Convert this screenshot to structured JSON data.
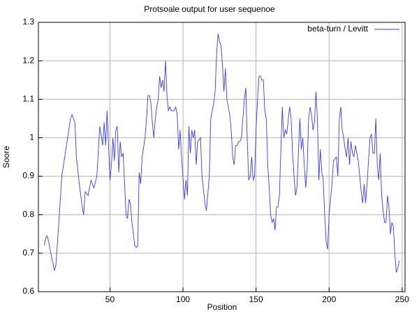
{
  "chart_data": {
    "type": "line",
    "title": "Protsoale output for user sequenoe",
    "x_label": "Position",
    "y_label": "Soore",
    "xlim": [
      1,
      252
    ],
    "ylim": [
      0.6,
      1.3
    ],
    "xticks": [
      50,
      100,
      150,
      200,
      250
    ],
    "yticks": [
      0.6,
      0.7,
      0.8,
      0.9,
      1,
      1.1,
      1.2,
      1.3
    ],
    "grid": true,
    "legend": "top-right",
    "x": [
      5,
      6,
      7,
      8,
      10,
      12,
      13,
      15,
      17,
      19,
      21,
      23,
      24,
      26,
      27,
      29,
      31,
      32,
      33,
      35,
      37,
      39,
      41,
      43,
      45,
      46,
      47,
      48,
      50,
      51,
      52,
      53,
      54,
      55,
      56,
      57,
      58,
      59,
      60,
      61,
      62,
      63,
      64,
      65,
      67,
      68,
      69,
      70,
      71,
      72,
      74,
      75,
      76,
      77,
      78,
      79,
      80,
      81,
      82,
      83,
      84,
      85,
      86,
      87,
      88,
      89,
      90,
      91,
      92,
      94,
      95,
      96,
      97,
      98,
      99,
      101,
      102,
      103,
      104,
      105,
      106,
      107,
      108,
      109,
      110,
      112,
      113,
      115,
      116,
      118,
      119,
      120,
      121,
      122,
      123,
      124,
      125,
      126,
      127,
      128,
      129,
      130,
      131,
      132,
      133,
      134,
      135,
      136,
      137,
      138,
      139,
      140,
      142,
      143,
      144,
      145,
      146,
      147,
      148,
      149,
      150,
      151,
      152,
      153,
      154,
      155,
      156,
      157,
      158,
      159,
      160,
      161,
      162,
      163,
      164,
      165,
      166,
      167,
      168,
      169,
      170,
      171,
      173,
      174,
      175,
      176,
      177,
      178,
      179,
      180,
      181,
      182,
      183,
      184,
      185,
      186,
      187,
      188,
      189,
      190,
      191,
      192,
      193,
      194,
      195,
      196,
      197,
      198,
      199,
      200,
      202,
      203,
      205,
      206,
      207,
      208,
      209,
      210,
      211,
      212,
      213,
      214,
      215,
      216,
      217,
      218,
      219,
      220,
      221,
      222,
      223,
      224,
      225,
      226,
      227,
      228,
      229,
      230,
      231,
      232,
      233,
      234,
      235,
      236,
      237,
      238,
      239,
      240,
      241,
      242,
      243,
      244,
      245,
      246,
      247,
      248
    ],
    "series": [
      {
        "name": "beta-turn / Levitt",
        "color": "#3a3aff",
        "values": [
          0.72,
          0.74,
          0.745,
          0.73,
          0.69,
          0.655,
          0.67,
          0.78,
          0.9,
          0.95,
          1.0,
          1.05,
          1.06,
          1.04,
          0.95,
          0.88,
          0.82,
          0.8,
          0.86,
          0.85,
          0.89,
          0.87,
          0.9,
          1.03,
          0.98,
          1.04,
          0.98,
          1.07,
          0.89,
          0.93,
          1.0,
          0.94,
          1.02,
          1.03,
          0.91,
          0.99,
          0.95,
          0.96,
          0.88,
          0.8,
          0.79,
          0.84,
          0.83,
          0.78,
          0.72,
          0.715,
          0.72,
          0.91,
          0.88,
          0.95,
          1.0,
          1.05,
          1.11,
          1.11,
          1.09,
          1.04,
          1.0,
          1.05,
          1.08,
          1.1,
          1.16,
          1.13,
          1.15,
          1.12,
          1.2,
          1.11,
          1.07,
          1.08,
          1.07,
          1.07,
          1.08,
          1.06,
          0.97,
          1.02,
          0.95,
          0.84,
          0.89,
          0.85,
          1.03,
          0.96,
          1.02,
          1.0,
          1.02,
          0.93,
          0.99,
          1.0,
          0.9,
          0.83,
          0.81,
          0.9,
          1.05,
          1.07,
          1.09,
          1.12,
          1.22,
          1.27,
          1.25,
          1.24,
          1.19,
          1.12,
          1.18,
          1.1,
          1.08,
          1.06,
          1.02,
          0.95,
          0.93,
          0.98,
          0.98,
          0.99,
          0.99,
          1.0,
          1.1,
          1.13,
          0.99,
          0.89,
          0.9,
          0.95,
          0.89,
          0.9,
          1.02,
          1.1,
          1.16,
          1.16,
          1.15,
          1.15,
          1.07,
          1.05,
          0.93,
          0.87,
          0.8,
          0.78,
          0.79,
          0.76,
          0.82,
          0.82,
          0.85,
          0.97,
          1.08,
          1.0,
          1.02,
          1.01,
          1.08,
          1.05,
          0.96,
          0.9,
          0.85,
          0.87,
          0.96,
          1.05,
          0.97,
          1.0,
          0.93,
          0.87,
          0.92,
          1.05,
          1.08,
          1.06,
          1.02,
          1.04,
          1.12,
          1.05,
          0.89,
          0.97,
          0.91,
          0.89,
          0.8,
          0.73,
          0.71,
          0.8,
          0.88,
          0.94,
          0.95,
          0.9,
          1.05,
          1.08,
          1.02,
          1.0,
          0.97,
          0.95,
          1.0,
          0.93,
          0.99,
          0.96,
          0.95,
          0.98,
          0.96,
          0.94,
          0.9,
          0.86,
          0.83,
          0.88,
          0.83,
          0.88,
          0.94,
          1.0,
          1.01,
          0.96,
          0.96,
          1.05,
          0.93,
          0.89,
          0.96,
          0.85,
          0.81,
          0.78,
          0.78,
          0.85,
          0.82,
          0.75,
          0.78,
          0.77,
          0.7,
          0.65,
          0.66,
          0.68
        ]
      }
    ]
  }
}
